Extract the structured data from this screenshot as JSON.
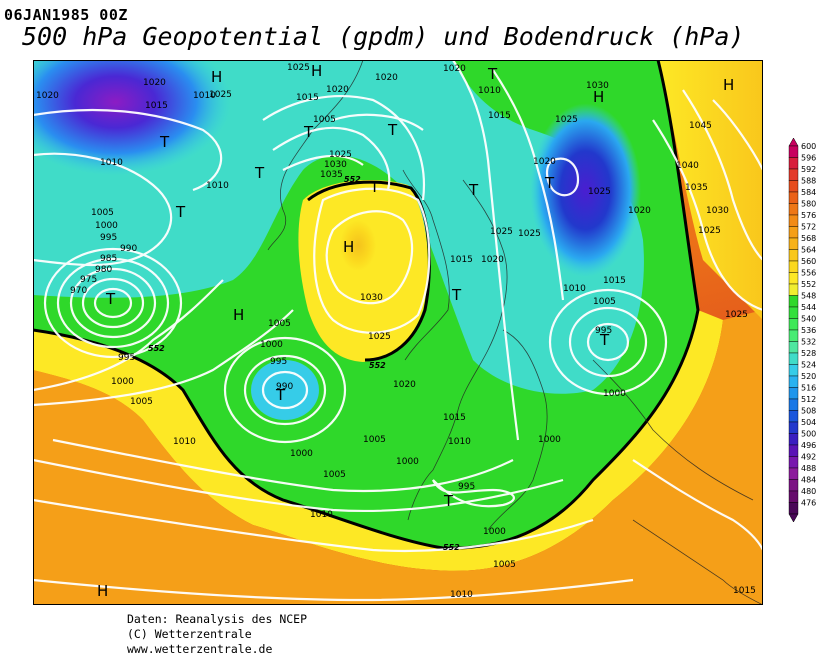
{
  "header": {
    "date": "06JAN1985 00Z",
    "title": "500 hPa Geopotential (gpdm) und Bodendruck (hPa)"
  },
  "legend": {
    "values": [
      600,
      596,
      592,
      588,
      584,
      580,
      576,
      572,
      568,
      564,
      560,
      556,
      552,
      548,
      544,
      540,
      536,
      532,
      528,
      524,
      520,
      516,
      512,
      508,
      504,
      500,
      496,
      492,
      488,
      484,
      480,
      476
    ],
    "colors": [
      "#c8005f",
      "#d81e3c",
      "#e33a2a",
      "#e64d1e",
      "#ea6118",
      "#ee7717",
      "#f28b17",
      "#f59f18",
      "#f7b21a",
      "#f9c71c",
      "#fbd81e",
      "#fde825",
      "#f0ee30",
      "#2fd82a",
      "#33e03c",
      "#3ee858",
      "#48ec74",
      "#4fe6a0",
      "#40dcc8",
      "#36cce8",
      "#2ab2f0",
      "#2096ec",
      "#1a78e6",
      "#1a56dc",
      "#2238cc",
      "#3a1ec0",
      "#5a14b6",
      "#7818ae",
      "#8c1c9c",
      "#7c1484",
      "#660c6c",
      "#4a0858"
    ]
  },
  "map": {
    "isobar_labels": [
      "1020",
      "1025",
      "1015",
      "1010",
      "1005",
      "1000",
      "995",
      "990",
      "985",
      "980",
      "975",
      "970",
      "1030",
      "1035",
      "1040",
      "1045"
    ],
    "pressure_systems": [
      {
        "type": "H",
        "label": "H"
      },
      {
        "type": "T",
        "label": "T"
      }
    ],
    "contour_labels": [
      "552",
      "552",
      "552",
      "552"
    ]
  },
  "credits": {
    "line1": "Daten: Reanalysis des NCEP",
    "line2": "(C) Wetterzentrale",
    "line3": "www.wetterzentrale.de"
  }
}
